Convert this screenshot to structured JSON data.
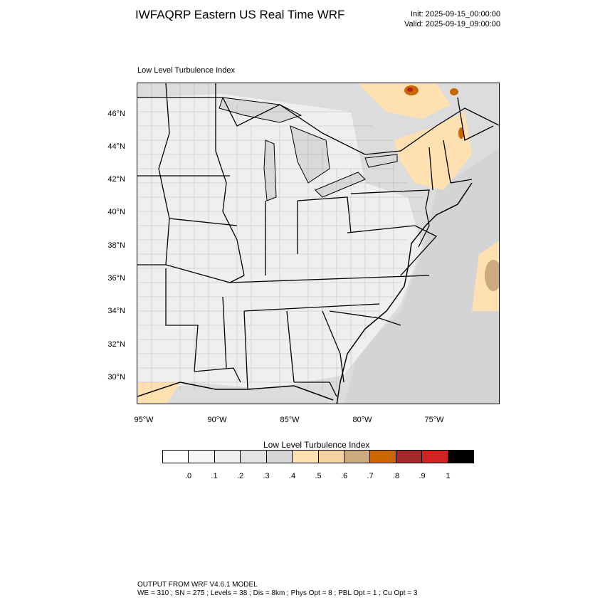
{
  "header": {
    "title": "IWFAQRP Eastern US Real Time WRF",
    "init": "Init: 2025-09-15_00:00:00",
    "valid": "Valid: 2025-09-19_09:00:00"
  },
  "map": {
    "subtitle": "Low Level Turbulence Index",
    "lat_labels": [
      "46°N",
      "44°N",
      "42°N",
      "40°N",
      "38°N",
      "36°N",
      "34°N",
      "32°N",
      "30°N"
    ],
    "lon_labels": [
      "95°W",
      "90°W",
      "85°W",
      "80°W",
      "75°W"
    ],
    "colors": {
      "land_fill": "#dcdcdc",
      "water_lake": "#d9d9d9",
      "low_turb": "#f2f2f2",
      "mid_turb": "#ffe0b0",
      "high_turb": "#cc6600",
      "peak_turb": "#b22222"
    }
  },
  "colorbar": {
    "title": "Low Level Turbulence Index",
    "colors": [
      "#ffffff",
      "#f7f7f7",
      "#efefef",
      "#e3e3e3",
      "#d6d6d6",
      "#ffe0b0",
      "#f3d3a0",
      "#cdaa7d",
      "#cc6600",
      "#a52a2a",
      "#d22222",
      "#000000"
    ],
    "ticks": [
      ".0",
      ".1",
      ".2",
      ".3",
      ".4",
      ".5",
      ".6",
      ".7",
      ".8",
      ".9",
      "1"
    ]
  },
  "footer": {
    "line1": "OUTPUT FROM WRF V4.6.1 MODEL",
    "line2": "WE = 310 ; SN = 275 ; Levels = 38 ; Dis = 8km ; Phys Opt = 8 ; PBL Opt = 1 ; Cu Opt = 3"
  }
}
